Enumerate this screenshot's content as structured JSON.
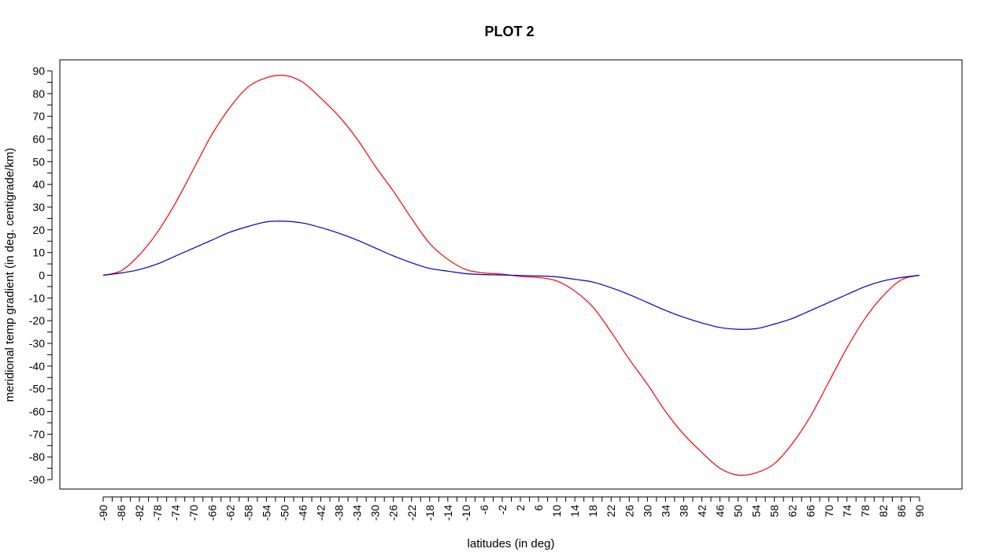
{
  "chart_data": {
    "type": "line",
    "title": "PLOT 2",
    "xlabel": "latitudes (in deg)",
    "ylabel": "meridional temp gradient (in deg. centigrade/km)",
    "xlim": [
      -90,
      90
    ],
    "ylim": [
      -90,
      90
    ],
    "x_tick_labels": [
      "-90",
      "-86",
      "-82",
      "-78",
      "-74",
      "-70",
      "-66",
      "-62",
      "-58",
      "-54",
      "-50",
      "-46",
      "-42",
      "-38",
      "-34",
      "-30",
      "-26",
      "-22",
      "-18",
      "-14",
      "-10",
      "-6",
      "-2",
      "2",
      "6",
      "10",
      "14",
      "18",
      "22",
      "26",
      "30",
      "34",
      "38",
      "42",
      "46",
      "50",
      "54",
      "58",
      "62",
      "66",
      "70",
      "74",
      "78",
      "82",
      "86",
      "90"
    ],
    "y_tick_labels": [
      "90",
      "80",
      "70",
      "60",
      "50",
      "40",
      "30",
      "20",
      "10",
      "0",
      "-10",
      "-20",
      "-30",
      "-40",
      "-50",
      "-60",
      "-70",
      "-80",
      "-90"
    ],
    "grid": false,
    "series": [
      {
        "color": "#ff0000",
        "x": [
          -90,
          -86,
          -82,
          -78,
          -74,
          -70,
          -66,
          -62,
          -58,
          -54,
          -50,
          -46,
          -42,
          -38,
          -34,
          -30,
          -26,
          -22,
          -18,
          -14,
          -10,
          -6,
          -2,
          2,
          6,
          10,
          14,
          18,
          22,
          26,
          30,
          34,
          38,
          42,
          46,
          50,
          54,
          58,
          62,
          66,
          70,
          74,
          78,
          82,
          86,
          90
        ],
        "values": [
          0,
          2,
          9,
          19,
          32,
          47,
          62,
          74,
          83,
          87,
          88,
          85,
          78,
          70,
          60,
          48,
          37,
          25,
          14,
          7,
          2.5,
          1,
          0.5,
          -0.5,
          -1,
          -2.5,
          -7,
          -14,
          -25,
          -37,
          -48,
          -60,
          -70,
          -78,
          -85,
          -88,
          -87,
          -83,
          -74,
          -62,
          -47,
          -32,
          -19,
          -9,
          -2,
          0
        ]
      },
      {
        "color": "#0000c0",
        "x": [
          -90,
          -86,
          -82,
          -78,
          -74,
          -70,
          -66,
          -62,
          -58,
          -54,
          -50,
          -46,
          -42,
          -38,
          -34,
          -30,
          -26,
          -22,
          -18,
          -14,
          -10,
          -6,
          -2,
          2,
          6,
          10,
          14,
          18,
          22,
          26,
          30,
          34,
          38,
          42,
          46,
          50,
          54,
          58,
          62,
          66,
          70,
          74,
          78,
          82,
          86,
          90
        ],
        "values": [
          0,
          1,
          2.5,
          5,
          8.5,
          12,
          15.5,
          19,
          21.5,
          23.5,
          23.8,
          23,
          21,
          18.5,
          15.5,
          12,
          8.5,
          5.5,
          3,
          1.8,
          0.7,
          0.3,
          0.1,
          -0.1,
          -0.3,
          -0.7,
          -1.8,
          -3,
          -5.5,
          -8.5,
          -12,
          -15.5,
          -18.5,
          -21,
          -23,
          -23.8,
          -23.5,
          -21.5,
          -19,
          -15.5,
          -12,
          -8.5,
          -5,
          -2.5,
          -1,
          0
        ]
      }
    ]
  }
}
